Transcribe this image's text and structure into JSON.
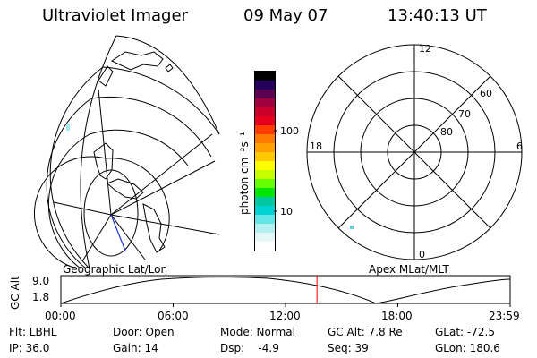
{
  "header": {
    "title": "Ultraviolet Imager",
    "date": "09 May 07",
    "time": "13:40:13 UT"
  },
  "left_panel": {
    "caption": "Geographic Lat/Lon"
  },
  "right_panel": {
    "caption": "Apex MLat/MLT",
    "mlt_labels": {
      "top": "12",
      "left": "18",
      "right": "6",
      "bottom": "0"
    },
    "lat_labels": [
      "60",
      "70",
      "80"
    ]
  },
  "colorbar": {
    "unit_label": "photon cm⁻²s⁻¹",
    "ticks": [
      "100",
      "10"
    ],
    "colors": [
      "#000000",
      "#23005a",
      "#5a0050",
      "#a00040",
      "#c8002a",
      "#e60020",
      "#ff3c00",
      "#ff7800",
      "#ffa000",
      "#ffc800",
      "#ffff00",
      "#c8ff00",
      "#64ff00",
      "#00e600",
      "#00c8a0",
      "#00d2d2",
      "#64e6e6",
      "#b4f0f0",
      "#e6f6f6",
      "#ffffff"
    ]
  },
  "timeline": {
    "ylabel": "GC Alt",
    "y_ticks": [
      "9.0",
      "1.8"
    ],
    "x_ticks": [
      "00:00",
      "06:00",
      "12:00",
      "18:00",
      "23:59"
    ],
    "current_time_fraction": 0.57,
    "line_color": "#ff0000"
  },
  "status": {
    "flt": "Flt: LBHL",
    "door": "Door: Open",
    "mode": "Mode: Normal",
    "gc_alt": "GC Alt: 7.8 Re",
    "glat": "GLat: -72.5",
    "ip": "IP: 36.0",
    "gain": "Gain: 14",
    "dsp": "Dsp:    -4.9",
    "seq": "Seq: 39",
    "glon": "GLon: 180.6"
  }
}
